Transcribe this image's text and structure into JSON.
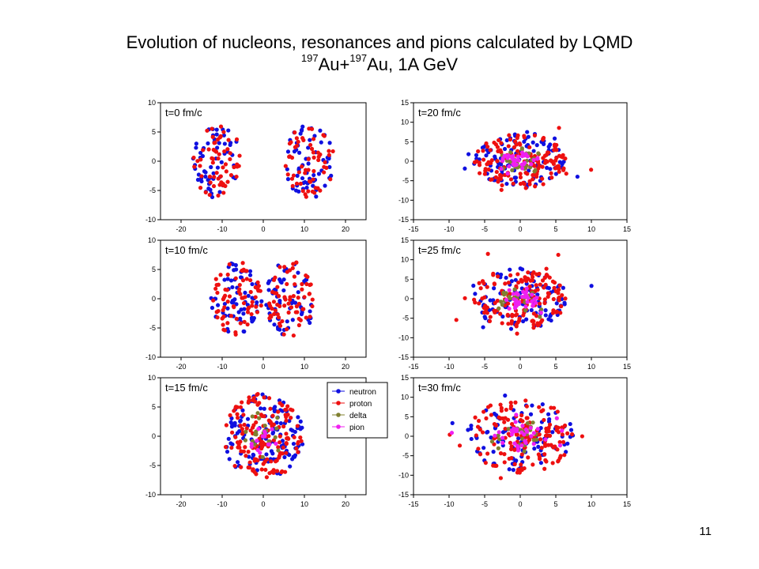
{
  "title_line1": "Evolution of nucleons, resonances and pions calculated by LQMD",
  "title_line2": {
    "mass1": "197",
    "elem1": "Au+",
    "mass2": "197",
    "elem2": "Au, 1A GeV"
  },
  "page_number": "11",
  "colors": {
    "neutron": "#1010e0",
    "proton": "#ee1010",
    "delta": "#808030",
    "pion": "#f020f0"
  },
  "chart_data": [
    {
      "type": "scatter",
      "panel": "t0",
      "label": "t=0 fm/c",
      "xlim": [
        -25,
        25
      ],
      "ylim": [
        -10,
        10
      ],
      "xticks": [
        -20,
        -10,
        0,
        10,
        20
      ],
      "yticks": [
        -10,
        -5,
        0,
        5,
        10
      ],
      "clusters": [
        {
          "cx": -11.2,
          "cy": 0,
          "rx": 6,
          "ry": 6.3
        },
        {
          "cx": 11.2,
          "cy": 0,
          "rx": 6,
          "ry": 6.3
        }
      ],
      "counts": {
        "neutron": 120,
        "proton": 120,
        "delta": 0,
        "pion": 0
      }
    },
    {
      "type": "scatter",
      "panel": "t10",
      "label": "t=10 fm/c",
      "xlim": [
        -25,
        25
      ],
      "ylim": [
        -10,
        10
      ],
      "xticks": [
        -20,
        -10,
        0,
        10,
        20
      ],
      "yticks": [
        -10,
        -5,
        0,
        5,
        10
      ],
      "clusters": [
        {
          "cx": -6.5,
          "cy": 0,
          "rx": 6.2,
          "ry": 6.5
        },
        {
          "cx": 6.5,
          "cy": 0,
          "rx": 6.2,
          "ry": 6.5
        }
      ],
      "counts": {
        "neutron": 130,
        "proton": 140,
        "delta": 0,
        "pion": 0
      }
    },
    {
      "type": "scatter",
      "panel": "t15",
      "label": "t=15 fm/c",
      "xlim": [
        -25,
        25
      ],
      "ylim": [
        -10,
        10
      ],
      "xticks": [
        -20,
        -10,
        0,
        10,
        20
      ],
      "yticks": [
        -10,
        -5,
        0,
        5,
        10
      ],
      "clusters": [
        {
          "cx": 0,
          "cy": 0,
          "rx": 10,
          "ry": 7.3
        }
      ],
      "counts": {
        "neutron": 130,
        "proton": 150,
        "delta": 20,
        "pion": 14
      }
    },
    {
      "type": "scatter",
      "panel": "t20",
      "label": "t=20 fm/c",
      "xlim": [
        -15,
        15
      ],
      "ylim": [
        -15,
        15
      ],
      "xticks": [
        -15,
        -10,
        -5,
        0,
        5,
        10,
        15
      ],
      "yticks": [
        -15,
        -10,
        -5,
        0,
        5,
        10,
        15
      ],
      "clusters": [
        {
          "cx": 0,
          "cy": 0,
          "rx": 6.5,
          "ry": 7
        }
      ],
      "counts": {
        "neutron": 110,
        "proton": 150,
        "delta": 30,
        "pion": 34
      }
    },
    {
      "type": "scatter",
      "panel": "t25",
      "label": "t=25 fm/c",
      "xlim": [
        -15,
        15
      ],
      "ylim": [
        -15,
        15
      ],
      "xticks": [
        -15,
        -10,
        -5,
        0,
        5,
        10,
        15
      ],
      "yticks": [
        -15,
        -10,
        -5,
        0,
        5,
        10,
        15
      ],
      "clusters": [
        {
          "cx": 0,
          "cy": 0,
          "rx": 6.5,
          "ry": 8
        }
      ],
      "counts": {
        "neutron": 110,
        "proton": 150,
        "delta": 25,
        "pion": 34
      }
    },
    {
      "type": "scatter",
      "panel": "t30",
      "label": "t=30 fm/c",
      "xlim": [
        -15,
        15
      ],
      "ylim": [
        -15,
        15
      ],
      "xticks": [
        -15,
        -10,
        -5,
        0,
        5,
        10,
        15
      ],
      "yticks": [
        -15,
        -10,
        -5,
        0,
        5,
        10,
        15
      ],
      "clusters": [
        {
          "cx": 0,
          "cy": 0,
          "rx": 7.5,
          "ry": 9.5
        }
      ],
      "counts": {
        "neutron": 110,
        "proton": 150,
        "delta": 22,
        "pion": 36
      }
    }
  ],
  "legend": [
    {
      "key": "neutron",
      "label": "neutron"
    },
    {
      "key": "proton",
      "label": "proton"
    },
    {
      "key": "delta",
      "label": "delta"
    },
    {
      "key": "pion",
      "label": "pion"
    }
  ]
}
